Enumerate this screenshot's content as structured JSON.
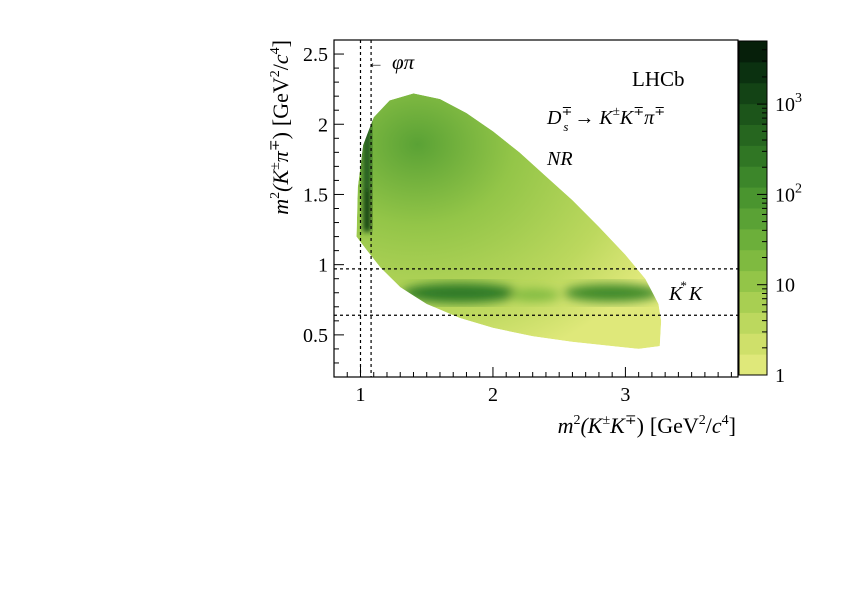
{
  "chart_data": {
    "type": "heatmap",
    "title": "",
    "xlabel": {
      "m": "m",
      "sup2": "2",
      "mid": "(K",
      "sup_pm": "±",
      "k2": "K",
      "sup_mp": "∓",
      "close": ")",
      "units": "[GeV",
      "usup": "2",
      "uslash": "/",
      "uc": "c",
      "usup4": "4",
      "uend": "]"
    },
    "ylabel": {
      "m": "m",
      "sup2": "2",
      "mid": "(K",
      "sup_pm": "±",
      "pi": "π",
      "sup_mp": "∓",
      "close": ")",
      "units": "[GeV",
      "usup": "2",
      "uslash": "/",
      "uc": "c",
      "usup4": "4",
      "uend": "]"
    },
    "xlim": [
      0.8,
      3.85
    ],
    "ylim": [
      0.2,
      2.6
    ],
    "x_ticks": [
      {
        "v": 1,
        "label": "1"
      },
      {
        "v": 2,
        "label": "2"
      },
      {
        "v": 3,
        "label": "3"
      }
    ],
    "y_ticks": [
      {
        "v": 0.5,
        "label": "0.5"
      },
      {
        "v": 1.0,
        "label": "1"
      },
      {
        "v": 1.5,
        "label": "1.5"
      },
      {
        "v": 2.0,
        "label": "2"
      },
      {
        "v": 2.5,
        "label": "2.5"
      }
    ],
    "colorbar": {
      "scale": "log",
      "range": [
        1,
        5000
      ],
      "ticks": [
        {
          "v": 1,
          "base": "1",
          "exp": ""
        },
        {
          "v": 10,
          "base": "10",
          "exp": ""
        },
        {
          "v": 100,
          "base": "10",
          "exp": "2"
        },
        {
          "v": 1000,
          "base": "10",
          "exp": "3"
        }
      ],
      "colors": [
        "#dfe87a",
        "#cfe06a",
        "#bcd85e",
        "#a8cf52",
        "#93c548",
        "#7fba40",
        "#6caf3a",
        "#5aa235",
        "#4a952f",
        "#3c862a",
        "#307624",
        "#26661f",
        "#1c551a",
        "#134315",
        "#0b3110",
        "#061f0a"
      ]
    },
    "dalitz_boundary_upper": [
      [
        0.97,
        1.2
      ],
      [
        0.98,
        1.55
      ],
      [
        1.02,
        1.85
      ],
      [
        1.1,
        2.05
      ],
      [
        1.22,
        2.17
      ],
      [
        1.4,
        2.22
      ],
      [
        1.6,
        2.18
      ],
      [
        1.8,
        2.08
      ],
      [
        2.0,
        1.95
      ],
      [
        2.2,
        1.8
      ],
      [
        2.4,
        1.63
      ],
      [
        2.6,
        1.46
      ],
      [
        2.8,
        1.27
      ],
      [
        3.0,
        1.07
      ],
      [
        3.15,
        0.9
      ],
      [
        3.25,
        0.72
      ],
      [
        3.27,
        0.6
      ],
      [
        3.26,
        0.42
      ]
    ],
    "dalitz_boundary_lower": [
      [
        0.97,
        1.2
      ],
      [
        1.05,
        1.1
      ],
      [
        1.15,
        0.98
      ],
      [
        1.3,
        0.84
      ],
      [
        1.5,
        0.72
      ],
      [
        1.75,
        0.62
      ],
      [
        2.0,
        0.55
      ],
      [
        2.3,
        0.49
      ],
      [
        2.6,
        0.45
      ],
      [
        2.9,
        0.42
      ],
      [
        3.1,
        0.4
      ],
      [
        3.26,
        0.42
      ]
    ],
    "phi_band_x": [
      1.0,
      1.08
    ],
    "kstar_band_y": [
      0.64,
      0.97
    ],
    "annotations": {
      "experiment": "LHCb",
      "phi": "φπ",
      "phi_arrow": "←",
      "nr": "NR",
      "kstar_k": "K",
      "kstar_star": "*",
      "kstar_k2": "K",
      "decay": {
        "d": "D",
        "d_sup": "∓",
        "d_sub": "s",
        "arrow": "→",
        "k1": "K",
        "k1_sup": "±",
        "k2": "K",
        "k2_sup": "∓",
        "pi": "π",
        "pi_sup": "∓"
      }
    }
  }
}
